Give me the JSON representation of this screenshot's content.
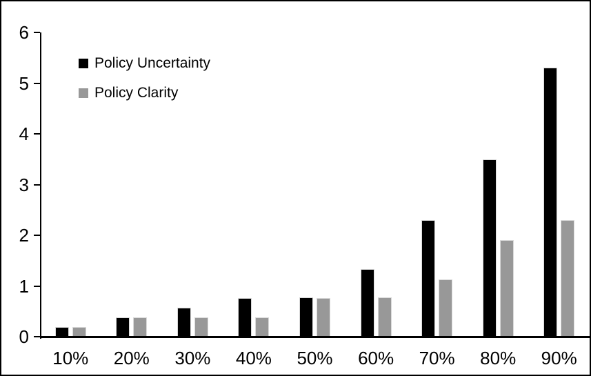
{
  "chart_data": {
    "type": "bar",
    "title": "",
    "xlabel": "",
    "ylabel": "",
    "categories": [
      "10%",
      "20%",
      "30%",
      "40%",
      "50%",
      "60%",
      "70%",
      "80%",
      "90%"
    ],
    "series": [
      {
        "name": "Policy Uncertainty",
        "color": "#000000",
        "values": [
          0.19,
          0.38,
          0.57,
          0.76,
          0.77,
          1.33,
          2.3,
          3.5,
          5.3
        ]
      },
      {
        "name": "Policy Clarity",
        "color": "#989898",
        "values": [
          0.19,
          0.38,
          0.38,
          0.38,
          0.76,
          0.77,
          1.13,
          1.9,
          2.3
        ]
      }
    ],
    "ylim": [
      0,
      6
    ],
    "yticks": [
      0,
      1,
      2,
      3,
      4,
      5,
      6
    ],
    "grid": false,
    "legend_position": "inside-top-left",
    "axis_color": "#000000",
    "background_color": "#ffffff",
    "frame_color": "#000000"
  }
}
